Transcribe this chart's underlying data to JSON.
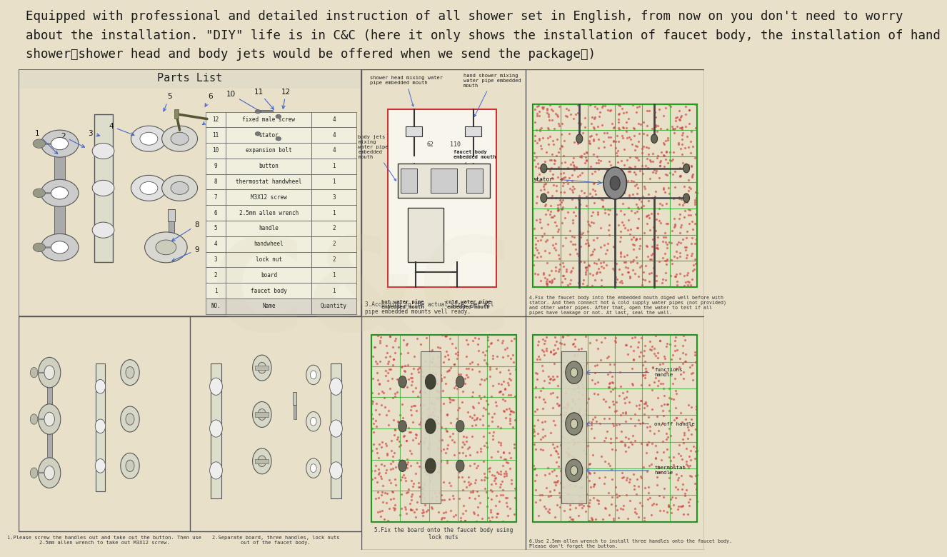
{
  "bg_header_color": "#3dba7a",
  "bg_main_color": "#e8e0c8",
  "bg_white": "#ffffff",
  "header_text": "Equipped with professional and detailed instruction of all shower set in English, from now on you don't need to worry\nabout the installation. \"DIY\" life is in C&C (here it only shows the installation of faucet body, the installation of hand\nshower、shower head and body jets would be offered when we send the package！)",
  "header_fontsize": 12.5,
  "header_text_color": "#1a1a1a",
  "parts_list_title": "Parts List",
  "cell3_caption": "3.According to the actual size, get all\npipe embedded mounts well ready.",
  "cell4_caption": "4.Fix the faucet body into the embedded mouth diged well before with\nstator. And then connect hot & cold supply water pipes (not provided)\nand other water pipes. After that, open the water to test if all\npipes have leakage or not. At last, seal the wall.",
  "cell5_caption": "1.Please screw the handles out and take out the button. Then use\n2.5mm allen wrench to take out M3X12 screw.",
  "cell6_caption": "2.Separate board, three handles, lock nuts\nout of the faucet body.",
  "cell7_caption": "5.Fix the board onto the faucet body using\nlock nuts",
  "cell8_caption": "6.Use 2.5mm allen wrench to install three handles onto the faucet body.\nPlease don't forget the button.",
  "table_data": [
    [
      "12",
      "fixed male screw",
      "4"
    ],
    [
      "11",
      "stator",
      "4"
    ],
    [
      "10",
      "expansion bolt",
      "4"
    ],
    [
      "9",
      "button",
      "1"
    ],
    [
      "8",
      "thermostat handwheel",
      "1"
    ],
    [
      "7",
      "M3X12 screw",
      "3"
    ],
    [
      "6",
      "2.5mm allen wrench",
      "1"
    ],
    [
      "5",
      "handle",
      "2"
    ],
    [
      "4",
      "handwheel",
      "2"
    ],
    [
      "3",
      "lock nut",
      "2"
    ],
    [
      "2",
      "board",
      "1"
    ],
    [
      "1",
      "faucet body",
      "1"
    ],
    [
      "NO.",
      "Name",
      "Quantity"
    ]
  ],
  "border_color": "#555555",
  "blue_arrow_color": "#4466cc"
}
